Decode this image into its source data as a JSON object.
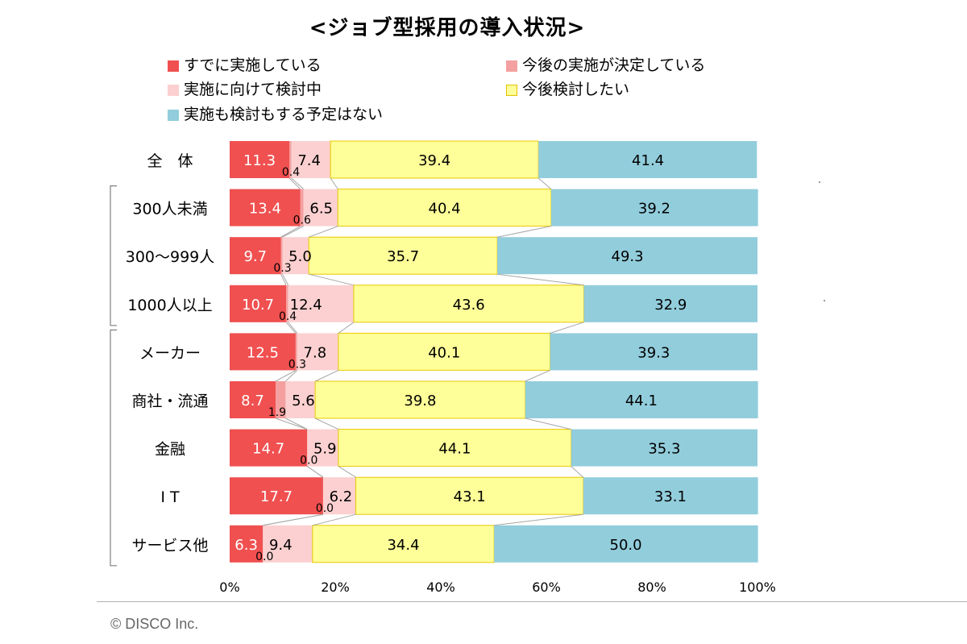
{
  "chart_data": {
    "type": "bar",
    "orientation": "horizontal",
    "stacked": "percent",
    "title": "<ジョブ型採用の導入状況>",
    "categories": [
      "全　体",
      "300人未満",
      "300～999人",
      "1000人以上",
      "メーカー",
      "商社・流通",
      "金融",
      "I T",
      "サービス他"
    ],
    "series": [
      {
        "name": "すでに実施している",
        "color": "#f05050",
        "values": [
          11.3,
          13.4,
          9.7,
          10.7,
          12.5,
          8.7,
          14.7,
          17.7,
          6.3
        ]
      },
      {
        "name": "今後の実施が決定している",
        "color": "#f4a0a0",
        "values": [
          0.4,
          0.6,
          0.3,
          0.4,
          0.3,
          1.9,
          0.0,
          0.0,
          0.0
        ]
      },
      {
        "name": "実施に向けて検討中",
        "color": "#fcd0d0",
        "values": [
          7.4,
          6.5,
          5.0,
          12.4,
          7.8,
          5.6,
          5.9,
          6.2,
          9.4
        ]
      },
      {
        "name": "今後検討したい",
        "color": "#ffff99",
        "values": [
          39.4,
          40.4,
          35.7,
          43.6,
          40.1,
          39.8,
          44.1,
          43.1,
          34.4
        ]
      },
      {
        "name": "実施も検討もする予定はない",
        "color": "#92cddc",
        "values": [
          41.4,
          39.2,
          49.3,
          32.9,
          39.3,
          44.1,
          35.3,
          33.1,
          50.0
        ]
      }
    ],
    "x_ticks": [
      "0%",
      "20%",
      "40%",
      "60%",
      "80%",
      "100%"
    ],
    "xlim": [
      0,
      100
    ],
    "grid": false,
    "legend_position": "top"
  },
  "footer": {
    "copyright": "© DISCO Inc."
  }
}
